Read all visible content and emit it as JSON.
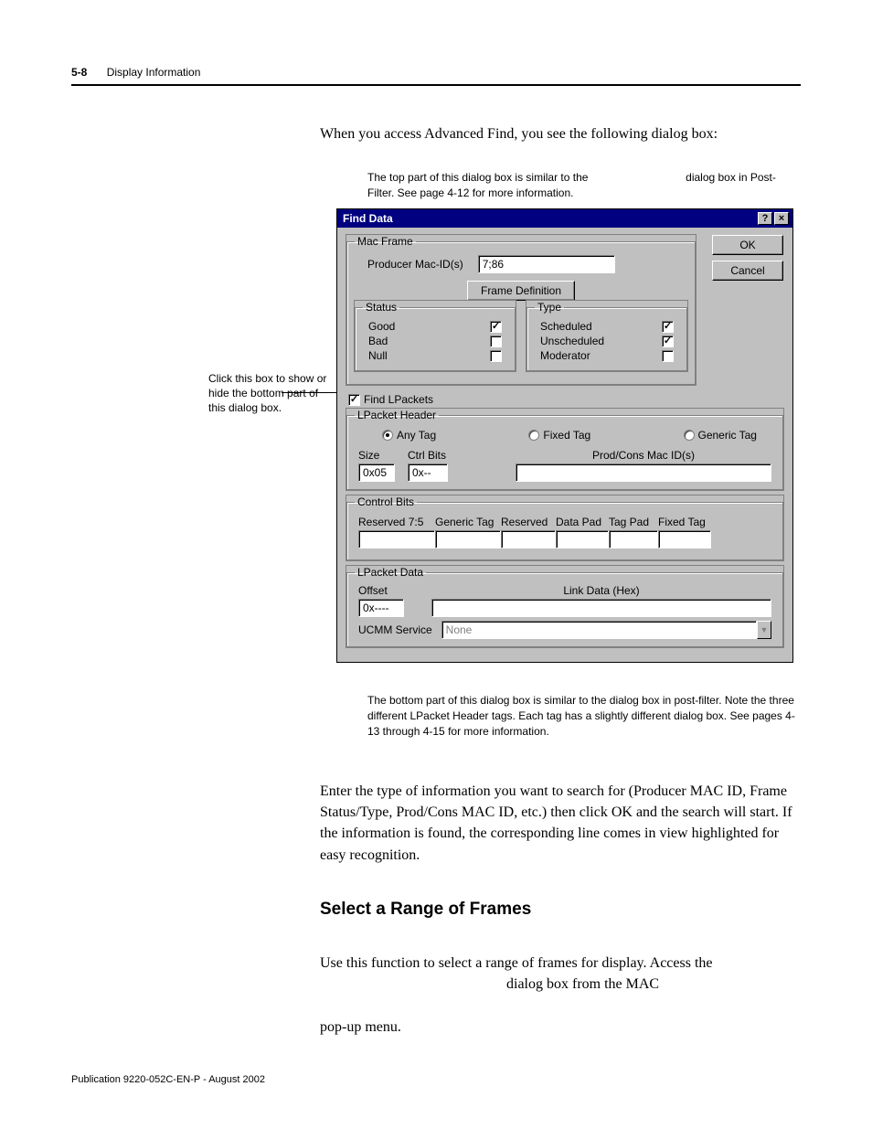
{
  "header": {
    "page_num": "5-8",
    "chapter": "Display Information"
  },
  "intro": "When you access Advanced Find, you see the following dialog box:",
  "caption_top_a": "The top part of this dialog box is similar to the",
  "caption_top_b": "dialog box in Post-Filter. See page 4-12 for more information.",
  "annotation": "Click this box to show or hide the bottom part of this dialog box.",
  "dialog": {
    "title": "Find Data",
    "help_btn": "?",
    "close_btn": "×",
    "ok": "OK",
    "cancel": "Cancel",
    "mac_frame": {
      "legend": "Mac Frame",
      "producer_label": "Producer Mac-ID(s)",
      "producer_value": "7;86",
      "frame_def_btn": "Frame Definition",
      "status": {
        "legend": "Status",
        "good": "Good",
        "good_checked": "✓",
        "bad": "Bad",
        "bad_checked": "",
        "null": "Null",
        "null_checked": ""
      },
      "type": {
        "legend": "Type",
        "scheduled": "Scheduled",
        "scheduled_checked": "✓",
        "unscheduled": "Unscheduled",
        "unscheduled_checked": "✓",
        "moderator": "Moderator",
        "moderator_checked": ""
      }
    },
    "find_lpackets": {
      "label": "Find LPackets",
      "checked": "✓"
    },
    "lpacket_header": {
      "legend": "LPacket Header",
      "any": "Any Tag",
      "fixed": "Fixed Tag",
      "generic": "Generic Tag",
      "size": "Size",
      "size_val": "0x05",
      "ctrl_bits": "Ctrl Bits",
      "ctrl_bits_val": "0x--",
      "prodcons": "Prod/Cons Mac ID(s)"
    },
    "control_bits": {
      "legend": "Control Bits",
      "cols": [
        "Reserved 7:5",
        "Generic Tag",
        "Reserved",
        "Data Pad",
        "Tag Pad",
        "Fixed Tag"
      ],
      "widths": [
        84,
        72,
        60,
        58,
        54,
        58
      ]
    },
    "lpacket_data": {
      "legend": "LPacket Data",
      "offset": "Offset",
      "offset_val": "0x----",
      "link_data": "Link Data (Hex)"
    },
    "ucmm": {
      "label": "UCMM Service",
      "value": "None"
    }
  },
  "caption_bottom": "The bottom part of this dialog box is similar to the                          dialog box in post-filter. Note the three different LPacket Header tags. Each tag has a slightly different dialog box. See pages 4-13 through 4-15 for more information.",
  "para1": "Enter the type of information you want to search for (Producer MAC ID, Frame Status/Type, Prod/Cons MAC ID, etc.) then click OK and the search will start. If the information is found, the corresponding line comes in view highlighted for easy recognition.",
  "section_head": "Select a Range of Frames",
  "para2_a": "Use this function to select a range of frames for display. Access the",
  "para2_b": "dialog box from the MAC",
  "para2_c": "pop-up menu.",
  "footer": "Publication 9220-052C-EN-P - August 2002",
  "colors": {
    "titlebar": "#000080",
    "ui_bg": "#c0c0c0"
  }
}
